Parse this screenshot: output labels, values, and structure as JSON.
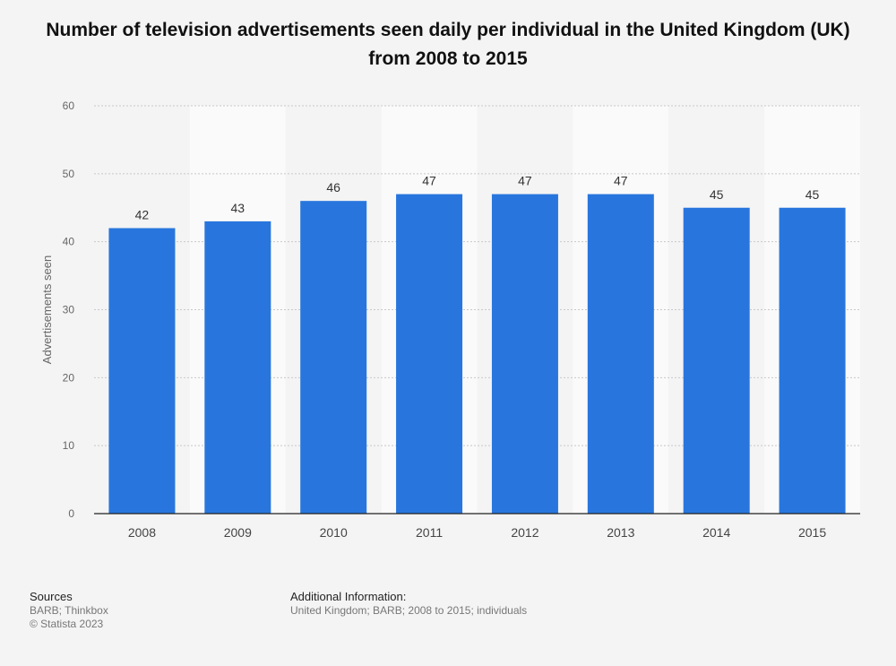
{
  "chart_data": {
    "type": "bar",
    "title": "Number of television advertisements seen daily per individual in the United Kingdom (UK) from 2008 to 2015",
    "xlabel": "",
    "ylabel": "Advertisements seen",
    "categories": [
      "2008",
      "2009",
      "2010",
      "2011",
      "2012",
      "2013",
      "2014",
      "2015"
    ],
    "values": [
      42,
      43,
      46,
      47,
      47,
      47,
      45,
      45
    ],
    "ylim": [
      0,
      60
    ],
    "yticks": [
      0,
      10,
      20,
      30,
      40,
      50,
      60
    ],
    "grid": true,
    "legend": "none",
    "data_labels": true,
    "bar_color": "#2876dd"
  },
  "footer": {
    "sources_heading": "Sources",
    "sources_line1": "BARB; Thinkbox",
    "sources_line2": "© Statista 2023",
    "additional_heading": "Additional Information:",
    "additional_line": "United Kingdom; BARB; 2008 to 2015; individuals"
  }
}
